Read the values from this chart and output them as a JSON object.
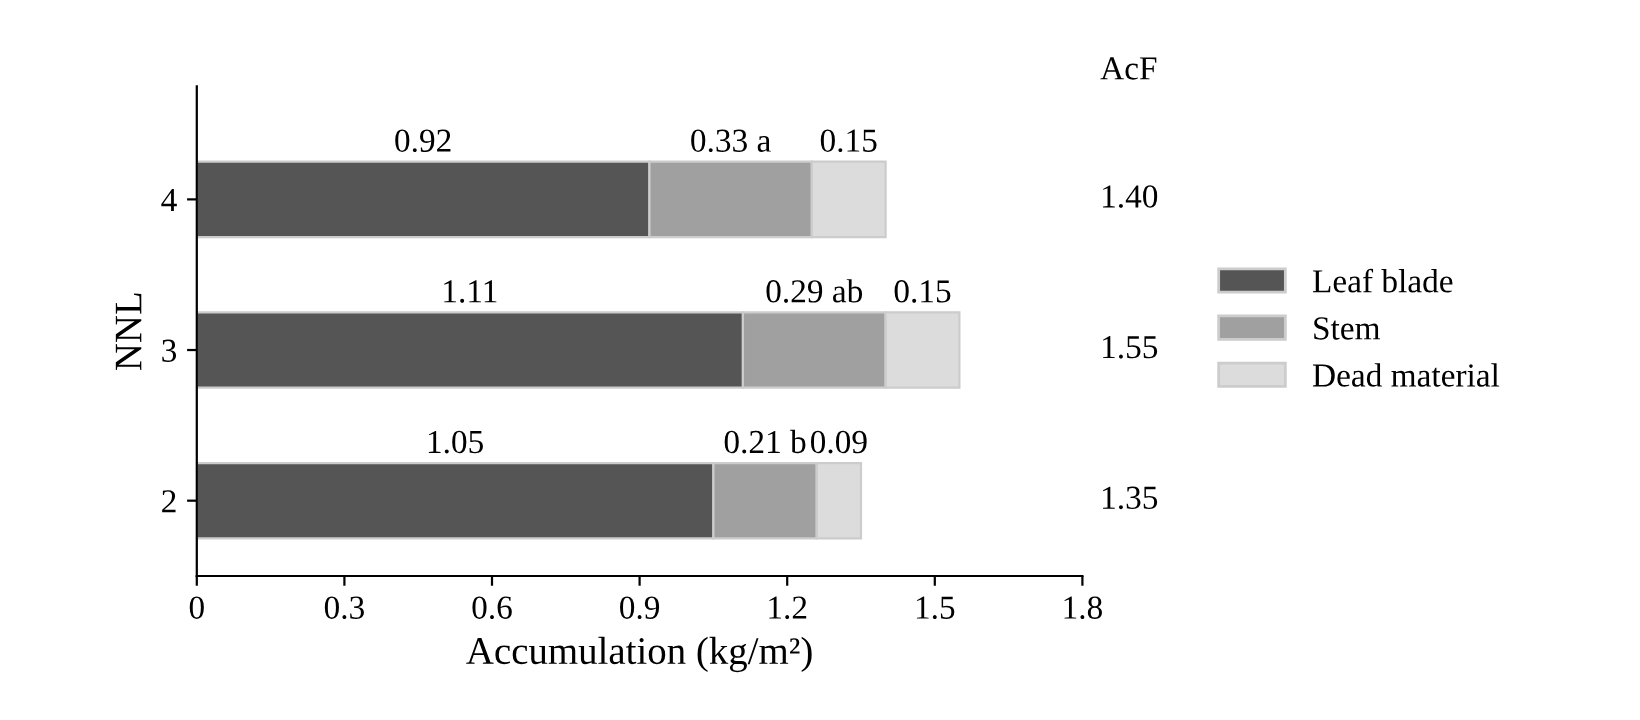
{
  "chart_data": {
    "type": "bar",
    "orientation": "horizontal",
    "stacked": true,
    "categories": [
      "4",
      "3",
      "2"
    ],
    "series": [
      {
        "name": "Leaf blade",
        "color": "#555555",
        "values": [
          0.92,
          1.11,
          1.05
        ],
        "value_labels": [
          "0.92",
          "1.11",
          "1.05"
        ]
      },
      {
        "name": "Stem",
        "color": "#a0a0a0",
        "values": [
          0.33,
          0.29,
          0.21
        ],
        "value_labels": [
          "0.33 a",
          "0.29 ab",
          "0.21 b"
        ]
      },
      {
        "name": "Dead material",
        "color": "#dcdcdc",
        "values": [
          0.15,
          0.15,
          0.09
        ],
        "value_labels": [
          "0.15",
          "0.15",
          "0.09"
        ]
      }
    ],
    "annotations": [
      "AcF",
      "1.40",
      "1.55",
      "1.35"
    ],
    "xlabel": "Accumulation (kg/m²)",
    "ylabel": "NNL",
    "xlim": [
      0,
      1.8
    ],
    "xticks": [
      0,
      0.3,
      0.6,
      0.9,
      1.2,
      1.5,
      1.8
    ],
    "grid": false,
    "legend": "right"
  }
}
